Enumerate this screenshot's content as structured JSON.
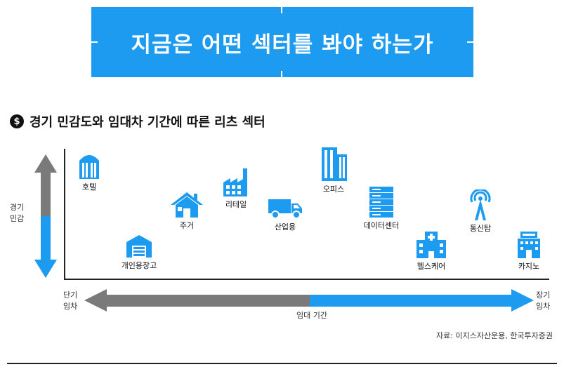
{
  "banner": {
    "title": "지금은 어떤 섹터를 봐야 하는가"
  },
  "subtitle": {
    "icon": "dollar-circle-icon",
    "icon_glyph": "$",
    "text": "경기 민감도와 임대차 기간에 따른 리츠 섹터"
  },
  "axes": {
    "y_label": "경기\n민감",
    "x_left": "단기\n임차",
    "x_right": "장기\n임차",
    "x_label": "임대 기간"
  },
  "sectors": [
    {
      "label": "호텔",
      "icon": "hotel-icon"
    },
    {
      "label": "개인용창고",
      "icon": "warehouse-icon"
    },
    {
      "label": "주거",
      "icon": "house-icon"
    },
    {
      "label": "리테일",
      "icon": "retail-icon"
    },
    {
      "label": "산업용",
      "icon": "truck-icon"
    },
    {
      "label": "오피스",
      "icon": "office-building-icon"
    },
    {
      "label": "데이터센터",
      "icon": "server-icon"
    },
    {
      "label": "헬스케어",
      "icon": "hospital-icon"
    },
    {
      "label": "통신탑",
      "icon": "antenna-tower-icon"
    },
    {
      "label": "카지노",
      "icon": "casino-icon"
    }
  ],
  "source": "자료: 이지스자산운용, 한국투자증권",
  "colors": {
    "blue": "#1c9bf0",
    "gray": "#7a7a7a",
    "dark": "#222222"
  }
}
